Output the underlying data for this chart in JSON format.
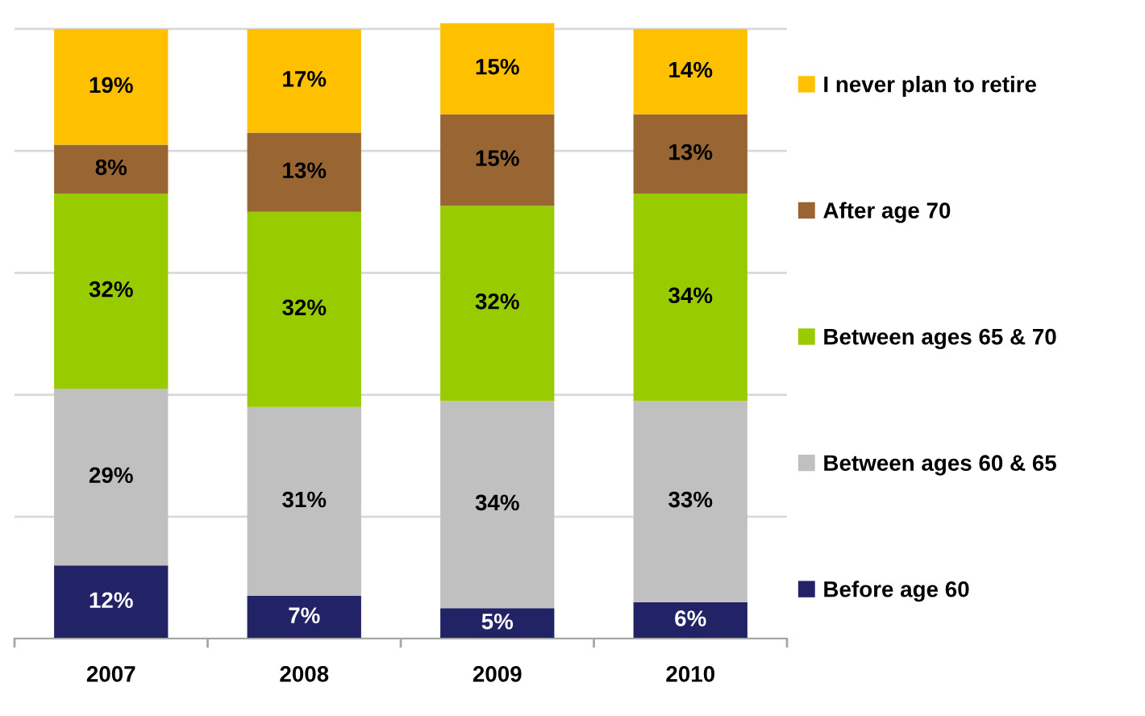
{
  "chart_data": {
    "type": "bar",
    "stacked": true,
    "categories": [
      "2007",
      "2008",
      "2009",
      "2010"
    ],
    "series": [
      {
        "name": "Before age 60",
        "color": "#222266",
        "values": [
          12,
          7,
          5,
          6
        ],
        "value_labels": [
          "12%",
          "7%",
          "5%",
          "6%"
        ]
      },
      {
        "name": "Between ages 60 & 65",
        "color": "#c0c0c0",
        "values": [
          29,
          31,
          34,
          33
        ],
        "value_labels": [
          "29%",
          "31%",
          "34%",
          "33%"
        ]
      },
      {
        "name": "Between ages 65 & 70",
        "color": "#99cc00",
        "values": [
          32,
          32,
          32,
          34
        ],
        "value_labels": [
          "32%",
          "32%",
          "32%",
          "34%"
        ]
      },
      {
        "name": "After age 70",
        "color": "#996633",
        "values": [
          8,
          13,
          15,
          13
        ],
        "value_labels": [
          "8%",
          "13%",
          "15%",
          "13%"
        ]
      },
      {
        "name": "I never plan to retire",
        "color": "#ffc000",
        "values": [
          19,
          17,
          15,
          14
        ],
        "value_labels": [
          "19%",
          "17%",
          "15%",
          "14%"
        ]
      }
    ],
    "ylim": [
      0,
      101
    ],
    "yticks": [
      {
        "value": 0,
        "label": null
      },
      {
        "value": 20,
        "label": null
      },
      {
        "value": 40,
        "label": null
      },
      {
        "value": 60,
        "label": null
      },
      {
        "value": 80,
        "label": null
      },
      {
        "value": 100,
        "label": null
      }
    ],
    "grid": "y",
    "legend": "right",
    "tick_labels": "x"
  }
}
